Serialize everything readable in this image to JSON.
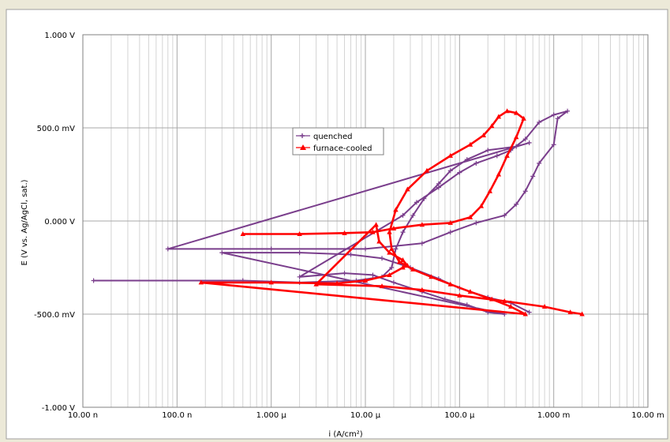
{
  "chart_data": {
    "type": "scatter",
    "title": "",
    "xlabel": "i (A/cm²)",
    "ylabel": "E (V vs. Ag/AgCl, sat.)",
    "x_scale": "log",
    "xlim": [
      1e-08,
      0.01
    ],
    "ylim": [
      -1.0,
      1.0
    ],
    "grid": true,
    "legend_position": "center-left",
    "x_ticks": [
      {
        "value": 1e-08,
        "label": "10.00 n"
      },
      {
        "value": 1e-07,
        "label": "100.0 n"
      },
      {
        "value": 1e-06,
        "label": "1.000 µ"
      },
      {
        "value": 1e-05,
        "label": "10.00 µ"
      },
      {
        "value": 0.0001,
        "label": "100.0 µ"
      },
      {
        "value": 0.001,
        "label": "1.000 m"
      },
      {
        "value": 0.01,
        "label": "10.00 m"
      }
    ],
    "y_ticks": [
      {
        "value": 1.0,
        "label": "1.000 V"
      },
      {
        "value": 0.5,
        "label": "500.0 mV"
      },
      {
        "value": 0.0,
        "label": "0.000 V"
      },
      {
        "value": -0.5,
        "label": "-500.0 mV"
      },
      {
        "value": -1.0,
        "label": "-1.000 V"
      }
    ],
    "series": [
      {
        "name": "quenched",
        "color": "#7a3e8c",
        "marker": "plus",
        "points": [
          [
            1.3e-08,
            -0.32
          ],
          [
            5e-07,
            -0.32
          ],
          [
            2e-06,
            -0.33
          ],
          [
            8e-06,
            -0.32
          ],
          [
            1.5e-05,
            -0.3
          ],
          [
            1.9e-05,
            -0.25
          ],
          [
            2.1e-05,
            -0.15
          ],
          [
            2.5e-05,
            -0.06
          ],
          [
            3.2e-05,
            0.03
          ],
          [
            4.2e-05,
            0.12
          ],
          [
            6e-05,
            0.2
          ],
          [
            8e-05,
            0.27
          ],
          [
            0.00012,
            0.33
          ],
          [
            0.0002,
            0.38
          ],
          [
            0.0004,
            0.4
          ],
          [
            0.00055,
            0.42
          ],
          [
            8e-08,
            -0.15
          ],
          [
            1e-06,
            -0.15
          ],
          [
            1e-05,
            -0.15
          ],
          [
            4e-05,
            -0.12
          ],
          [
            8e-05,
            -0.06
          ],
          [
            0.00015,
            -0.01
          ],
          [
            0.0003,
            0.03
          ],
          [
            0.0004,
            0.09
          ],
          [
            0.0005,
            0.16
          ],
          [
            0.0006,
            0.24
          ],
          [
            0.0007,
            0.31
          ],
          [
            0.001,
            0.41
          ],
          [
            0.0011,
            0.55
          ],
          [
            0.0014,
            0.59
          ],
          [
            0.001,
            0.57
          ],
          [
            0.0007,
            0.53
          ],
          [
            0.0005,
            0.44
          ],
          [
            0.00035,
            0.38
          ],
          [
            0.00025,
            0.35
          ],
          [
            0.00015,
            0.31
          ],
          [
            0.0001,
            0.26
          ],
          [
            6e-05,
            0.18
          ],
          [
            3.5e-05,
            0.1
          ],
          [
            2.5e-05,
            0.03
          ],
          [
            2e-06,
            -0.3
          ],
          [
            6e-06,
            -0.28
          ],
          [
            1.2e-05,
            -0.29
          ],
          [
            2e-05,
            -0.33
          ],
          [
            4e-05,
            -0.38
          ],
          [
            7e-05,
            -0.42
          ],
          [
            0.00012,
            -0.45
          ],
          [
            0.0002,
            -0.49
          ],
          [
            0.0003,
            -0.5
          ],
          [
            3e-07,
            -0.17
          ],
          [
            2e-06,
            -0.17
          ],
          [
            7e-06,
            -0.18
          ],
          [
            1.5e-05,
            -0.2
          ],
          [
            3e-05,
            -0.25
          ],
          [
            6e-05,
            -0.31
          ],
          [
            0.0001,
            -0.36
          ],
          [
            0.0002,
            -0.41
          ],
          [
            0.00035,
            -0.44
          ],
          [
            0.00055,
            -0.49
          ]
        ]
      },
      {
        "name": "furnace-cooled",
        "color": "#ff0000",
        "marker": "triangle",
        "points": [
          [
            5e-07,
            -0.07
          ],
          [
            2e-06,
            -0.07
          ],
          [
            6e-06,
            -0.065
          ],
          [
            1.2e-05,
            -0.06
          ],
          [
            2e-05,
            -0.04
          ],
          [
            4e-05,
            -0.02
          ],
          [
            8e-05,
            -0.01
          ],
          [
            0.00013,
            0.02
          ],
          [
            0.00017,
            0.08
          ],
          [
            0.00021,
            0.16
          ],
          [
            0.00026,
            0.25
          ],
          [
            0.00032,
            0.35
          ],
          [
            0.0004,
            0.45
          ],
          [
            0.00048,
            0.55
          ],
          [
            0.0004,
            0.58
          ],
          [
            0.00032,
            0.59
          ],
          [
            0.00026,
            0.56
          ],
          [
            0.00022,
            0.51
          ],
          [
            0.00018,
            0.46
          ],
          [
            0.00013,
            0.41
          ],
          [
            8e-05,
            0.35
          ],
          [
            4.5e-05,
            0.27
          ],
          [
            2.8e-05,
            0.17
          ],
          [
            2.1e-05,
            0.06
          ],
          [
            1.8e-05,
            -0.06
          ],
          [
            1.9e-05,
            -0.15
          ],
          [
            2.3e-05,
            -0.22
          ],
          [
            3.2e-05,
            -0.26
          ],
          [
            5e-05,
            -0.3
          ],
          [
            8e-05,
            -0.34
          ],
          [
            0.00013,
            -0.38
          ],
          [
            0.00022,
            -0.42
          ],
          [
            0.00035,
            -0.46
          ],
          [
            0.0005,
            -0.5
          ],
          [
            1.8e-07,
            -0.33
          ],
          [
            1e-06,
            -0.33
          ],
          [
            5e-06,
            -0.335
          ],
          [
            1e-05,
            -0.32
          ],
          [
            1.8e-05,
            -0.29
          ],
          [
            2.5e-05,
            -0.25
          ],
          [
            2.8e-05,
            -0.24
          ],
          [
            2.5e-05,
            -0.21
          ],
          [
            1.8e-05,
            -0.17
          ],
          [
            1.4e-05,
            -0.11
          ],
          [
            1.3e-05,
            -0.02
          ],
          [
            3e-06,
            -0.34
          ],
          [
            1.5e-05,
            -0.35
          ],
          [
            4e-05,
            -0.37
          ],
          [
            0.0001,
            -0.4
          ],
          [
            0.0003,
            -0.43
          ],
          [
            0.0008,
            -0.46
          ],
          [
            0.0015,
            -0.49
          ],
          [
            0.002,
            -0.5
          ]
        ]
      }
    ]
  }
}
